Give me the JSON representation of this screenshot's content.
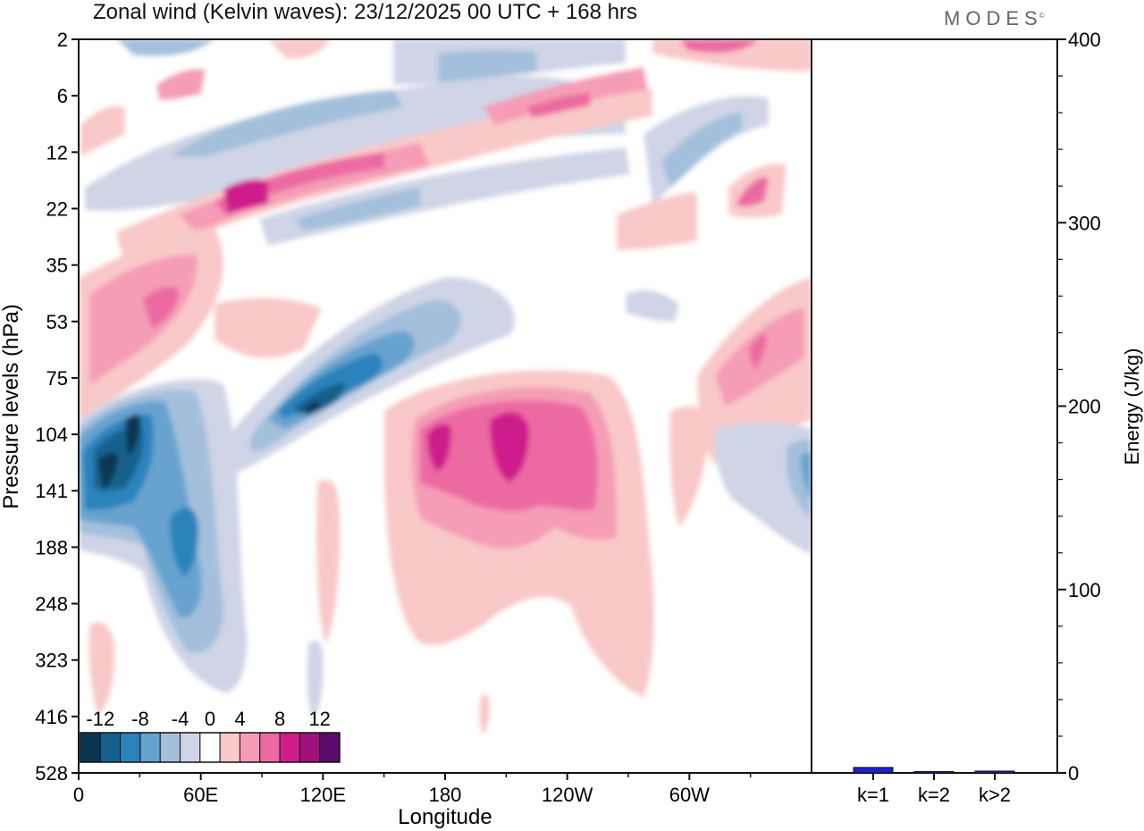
{
  "header": {
    "title": "Zonal wind (Kelvin waves):  23/12/2025  00 UTC  + 168 hrs",
    "brand": "MODES",
    "brand_mark": "©"
  },
  "chart_data": [
    {
      "type": "heatmap",
      "title": "Zonal wind (Kelvin waves):  23/12/2025  00 UTC  + 168 hrs",
      "xlabel": "Longitude",
      "ylabel": "Pressure levels (hPa)",
      "x_ticks": [
        "0",
        "60E",
        "120E",
        "180",
        "120W",
        "60W"
      ],
      "x_tick_degrees": [
        0,
        60,
        120,
        180,
        240,
        300
      ],
      "xlim": [
        0,
        360
      ],
      "y_ticks": [
        "2",
        "6",
        "12",
        "22",
        "35",
        "53",
        "75",
        "104",
        "141",
        "188",
        "248",
        "323",
        "416",
        "528"
      ],
      "colorbar": {
        "labels": [
          "-12",
          "-8",
          "-4",
          "0",
          "4",
          "8",
          "12"
        ],
        "levels": [
          -14,
          -12,
          -10,
          -8,
          -6,
          -4,
          -2,
          2,
          4,
          6,
          8,
          10,
          12,
          14
        ],
        "colors": [
          "#0b3551",
          "#15608d",
          "#2a83bb",
          "#67a3cf",
          "#a3bfdc",
          "#cfd4e6",
          "#ffffff",
          "#f9c8c8",
          "#f59cb6",
          "#ec6aa2",
          "#cf1e8c",
          "#a10f7d",
          "#5a0a6a"
        ]
      },
      "features": [
        {
          "name": "negative band near 12-22 hPa",
          "lon_range": [
            40,
            160
          ],
          "value": -6
        },
        {
          "name": "positive band near 12-22 hPa",
          "lon_range": [
            65,
            160
          ],
          "value": 10
        },
        {
          "name": "strong negative core",
          "lon_center": 20,
          "level_hPa": 141,
          "value": -13
        },
        {
          "name": "negative tilted band 53-104 hPa",
          "lon_range": [
            100,
            150
          ],
          "value": -10
        },
        {
          "name": "broad positive region",
          "lon_range": [
            150,
            270
          ],
          "level_hPa": 104,
          "value": 10
        }
      ]
    },
    {
      "type": "bar",
      "categories": [
        "k=1",
        "k=2",
        "k>2"
      ],
      "values": [
        3,
        0.5,
        1
      ],
      "ylabel": "Energy (J/kg)",
      "ylim": [
        0,
        400
      ],
      "y_ticks": [
        "0",
        "100",
        "200",
        "300",
        "400"
      ],
      "colors": [
        "#1f1fd6",
        "#1f1fd6",
        "#1f1fd6"
      ]
    }
  ]
}
